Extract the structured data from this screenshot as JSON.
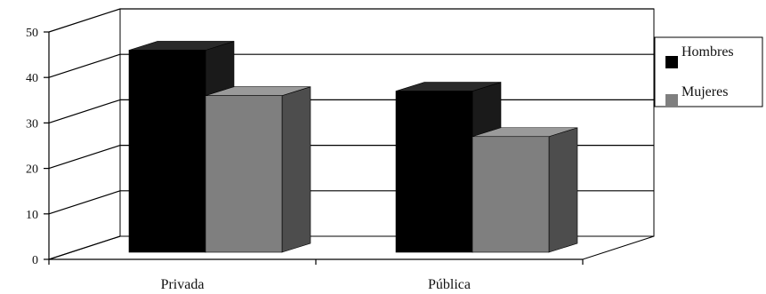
{
  "chart_data": {
    "type": "bar",
    "categories": [
      "Privada",
      "Pública"
    ],
    "series": [
      {
        "name": "Hombres",
        "values": [
          46,
          37
        ]
      },
      {
        "name": "Mujeres",
        "values": [
          36,
          27
        ]
      }
    ],
    "ylim": [
      0,
      50
    ],
    "yticks": [
      "0",
      "10",
      "20",
      "30",
      "40",
      "50"
    ],
    "grid": true,
    "legend": "right",
    "style": "3d",
    "colors": {
      "Hombres": "#000000",
      "Mujeres": "#7f7f7f",
      "Mujeres_side": "#4d4d4d",
      "Mujeres_top": "#9a9a9a",
      "Hombres_side": "#1a1a1a",
      "Hombres_top": "#2a2a2a"
    }
  }
}
